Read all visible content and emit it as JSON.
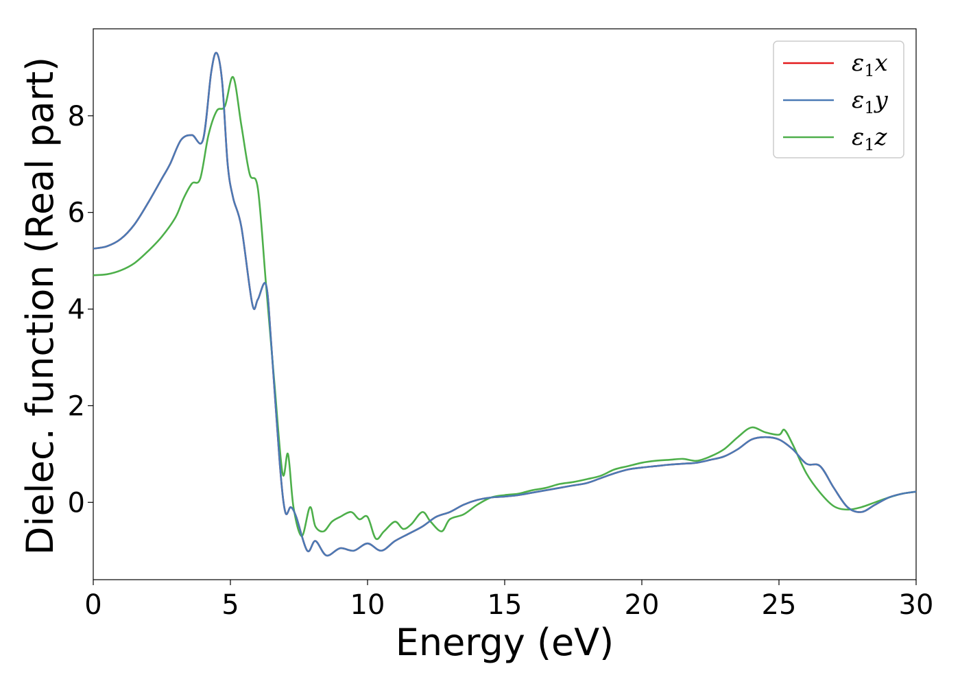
{
  "chart_data": {
    "type": "line",
    "xlabel": "Energy (eV)",
    "ylabel": "Dielec. function (Real part)",
    "xlim": [
      0,
      30
    ],
    "ylim": [
      -1.6,
      9.8
    ],
    "xticks": [
      0,
      5,
      10,
      15,
      20,
      25,
      30
    ],
    "xtick_labels": [
      "0",
      "5",
      "10",
      "15",
      "20",
      "25",
      "30"
    ],
    "yticks": [
      0,
      2,
      4,
      6,
      8
    ],
    "ytick_labels": [
      "0",
      "2",
      "4",
      "6",
      "8"
    ],
    "grid": false,
    "legend_position": "top-right",
    "series": [
      {
        "name": "ε₁x",
        "legend_main": "ε",
        "legend_sub": "1",
        "legend_var": "x",
        "color": "#e31a1c",
        "x": [
          0,
          0.5,
          1,
          1.5,
          2,
          2.5,
          2.8,
          3.2,
          3.6,
          4,
          4.3,
          4.5,
          4.7,
          4.9,
          5.1,
          5.4,
          5.8,
          6,
          6.3,
          6.5,
          6.8,
          7,
          7.2,
          7.4,
          7.8,
          8.1,
          8.5,
          9,
          9.5,
          10,
          10.5,
          11,
          11.5,
          12,
          12.5,
          13,
          13.5,
          14,
          14.5,
          15,
          15.5,
          16,
          16.5,
          17,
          17.5,
          18,
          18.5,
          19,
          19.5,
          20,
          20.5,
          21,
          21.5,
          22,
          22.5,
          23,
          23.5,
          24,
          24.5,
          25,
          25.5,
          26,
          26.5,
          27,
          27.5,
          28,
          28.5,
          29,
          29.5,
          30
        ],
        "y": [
          5.25,
          5.3,
          5.45,
          5.75,
          6.2,
          6.7,
          7.0,
          7.5,
          7.6,
          7.5,
          8.9,
          9.3,
          8.7,
          7.0,
          6.3,
          5.7,
          4.1,
          4.2,
          4.5,
          3.2,
          0.8,
          -0.2,
          -0.1,
          -0.3,
          -1.0,
          -0.8,
          -1.1,
          -0.95,
          -1.0,
          -0.85,
          -1.0,
          -0.8,
          -0.65,
          -0.5,
          -0.3,
          -0.2,
          -0.05,
          0.05,
          0.1,
          0.12,
          0.15,
          0.2,
          0.25,
          0.3,
          0.35,
          0.4,
          0.5,
          0.6,
          0.68,
          0.72,
          0.75,
          0.78,
          0.8,
          0.82,
          0.88,
          0.95,
          1.1,
          1.3,
          1.35,
          1.3,
          1.1,
          0.8,
          0.75,
          0.3,
          -0.1,
          -0.2,
          -0.05,
          0.1,
          0.18,
          0.22
        ]
      },
      {
        "name": "ε₁y",
        "legend_main": "ε",
        "legend_sub": "1",
        "legend_var": "y",
        "color": "#4a7ab5",
        "x": [
          0,
          0.5,
          1,
          1.5,
          2,
          2.5,
          2.8,
          3.2,
          3.6,
          4,
          4.3,
          4.5,
          4.7,
          4.9,
          5.1,
          5.4,
          5.8,
          6,
          6.3,
          6.5,
          6.8,
          7,
          7.2,
          7.4,
          7.8,
          8.1,
          8.5,
          9,
          9.5,
          10,
          10.5,
          11,
          11.5,
          12,
          12.5,
          13,
          13.5,
          14,
          14.5,
          15,
          15.5,
          16,
          16.5,
          17,
          17.5,
          18,
          18.5,
          19,
          19.5,
          20,
          20.5,
          21,
          21.5,
          22,
          22.5,
          23,
          23.5,
          24,
          24.5,
          25,
          25.5,
          26,
          26.5,
          27,
          27.5,
          28,
          28.5,
          29,
          29.5,
          30
        ],
        "y": [
          5.25,
          5.3,
          5.45,
          5.75,
          6.2,
          6.7,
          7.0,
          7.5,
          7.6,
          7.5,
          8.9,
          9.3,
          8.7,
          7.0,
          6.3,
          5.7,
          4.1,
          4.2,
          4.5,
          3.2,
          0.8,
          -0.2,
          -0.1,
          -0.3,
          -1.0,
          -0.8,
          -1.1,
          -0.95,
          -1.0,
          -0.85,
          -1.0,
          -0.8,
          -0.65,
          -0.5,
          -0.3,
          -0.2,
          -0.05,
          0.05,
          0.1,
          0.12,
          0.15,
          0.2,
          0.25,
          0.3,
          0.35,
          0.4,
          0.5,
          0.6,
          0.68,
          0.72,
          0.75,
          0.78,
          0.8,
          0.82,
          0.88,
          0.95,
          1.1,
          1.3,
          1.35,
          1.3,
          1.1,
          0.8,
          0.75,
          0.3,
          -0.1,
          -0.2,
          -0.05,
          0.1,
          0.18,
          0.22
        ]
      },
      {
        "name": "ε₁z",
        "legend_main": "ε",
        "legend_sub": "1",
        "legend_var": "z",
        "color": "#4daf4a",
        "x": [
          0,
          0.5,
          1,
          1.5,
          2,
          2.5,
          3,
          3.3,
          3.6,
          3.9,
          4.2,
          4.5,
          4.8,
          5.1,
          5.4,
          5.7,
          6,
          6.3,
          6.6,
          6.9,
          7.1,
          7.3,
          7.6,
          7.9,
          8.1,
          8.4,
          8.7,
          9,
          9.4,
          9.7,
          10,
          10.3,
          10.6,
          11,
          11.3,
          11.6,
          12,
          12.3,
          12.7,
          13,
          13.5,
          14,
          14.5,
          15,
          15.5,
          16,
          16.5,
          17,
          17.5,
          18,
          18.5,
          19,
          19.5,
          20,
          20.5,
          21,
          21.5,
          22,
          22.5,
          23,
          23.5,
          24,
          24.5,
          25,
          25.2,
          25.5,
          26,
          26.5,
          27,
          27.5,
          28,
          28.5,
          29,
          29.5,
          30
        ],
        "y": [
          4.7,
          4.72,
          4.8,
          4.95,
          5.2,
          5.5,
          5.9,
          6.3,
          6.6,
          6.7,
          7.6,
          8.1,
          8.2,
          8.8,
          7.8,
          6.8,
          6.5,
          4.5,
          2.5,
          0.6,
          1.0,
          -0.1,
          -0.7,
          -0.1,
          -0.5,
          -0.6,
          -0.4,
          -0.3,
          -0.2,
          -0.35,
          -0.3,
          -0.75,
          -0.6,
          -0.4,
          -0.55,
          -0.45,
          -0.2,
          -0.4,
          -0.6,
          -0.35,
          -0.25,
          -0.05,
          0.1,
          0.15,
          0.18,
          0.25,
          0.3,
          0.38,
          0.42,
          0.48,
          0.55,
          0.68,
          0.75,
          0.82,
          0.86,
          0.88,
          0.9,
          0.86,
          0.95,
          1.1,
          1.35,
          1.55,
          1.45,
          1.4,
          1.5,
          1.2,
          0.6,
          0.2,
          -0.08,
          -0.15,
          -0.1,
          0.0,
          0.1,
          0.18,
          0.22
        ]
      }
    ]
  }
}
